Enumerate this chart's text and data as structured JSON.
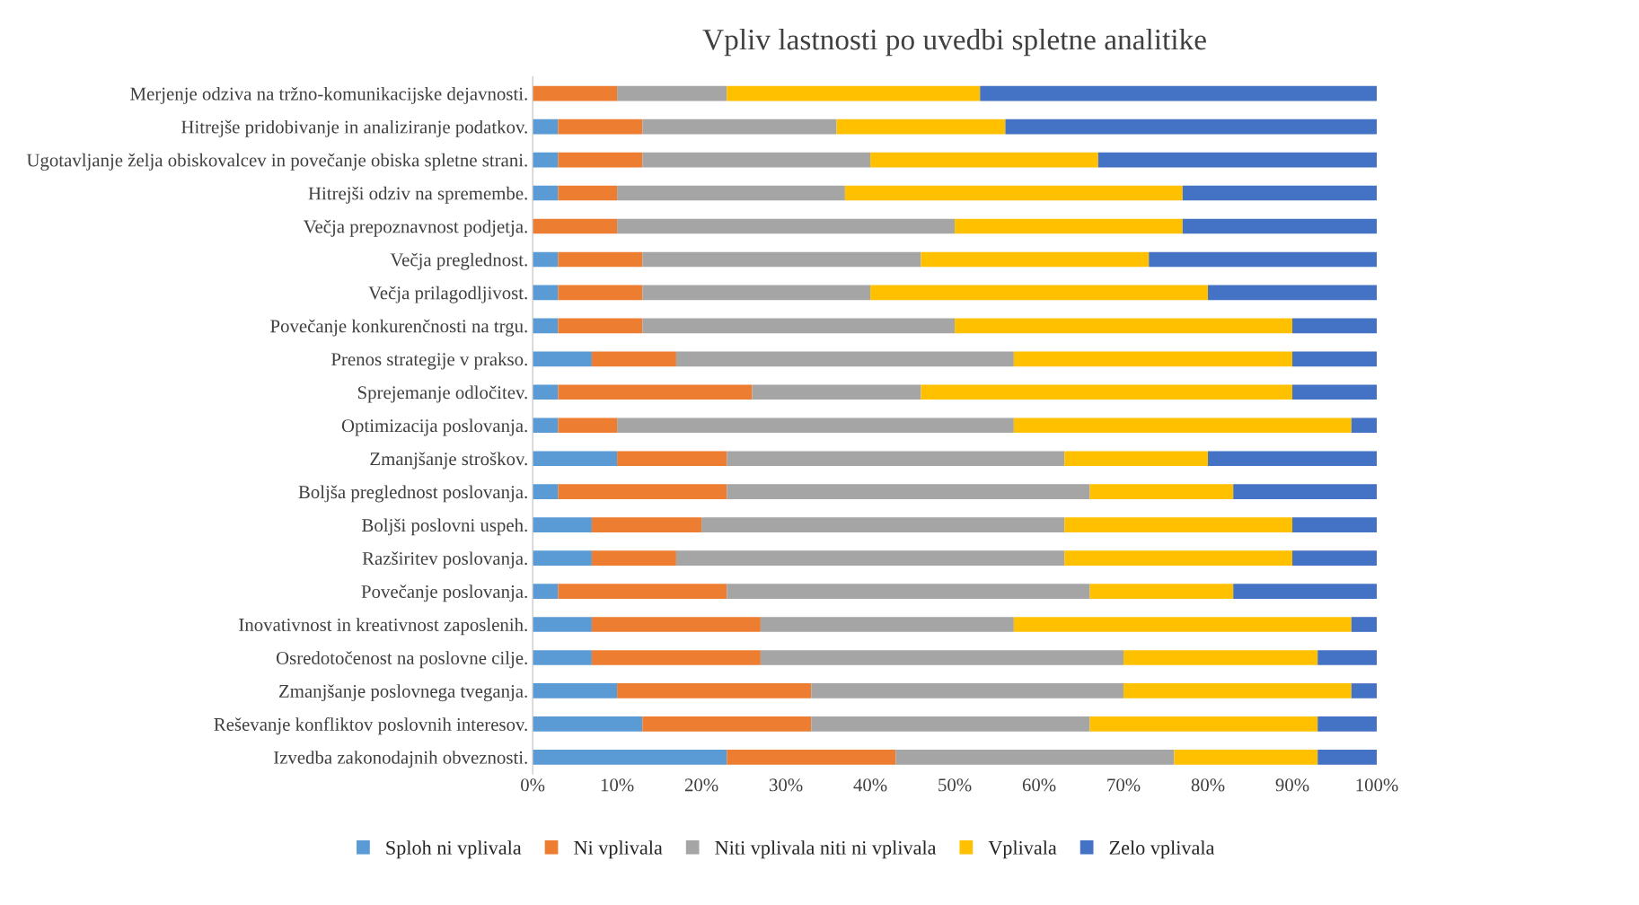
{
  "chart_data": {
    "type": "bar",
    "orientation": "horizontal",
    "stacked": true,
    "title": "Vpliv lastnosti po uvedbi spletne analitike",
    "categories": [
      "Merjenje odziva na tržno-komunikacijske dejavnosti.",
      "Hitrejše pridobivanje in analiziranje podatkov.",
      "Ugotavljanje želja obiskovalcev in povečanje obiska spletne strani.",
      "Hitrejši odziv na spremembe.",
      "Večja prepoznavnost podjetja.",
      "Večja preglednost.",
      "Večja prilagodljivost.",
      "Povečanje konkurenčnosti na trgu.",
      "Prenos strategije v prakso.",
      "Sprejemanje odločitev.",
      "Optimizacija poslovanja.",
      "Zmanjšanje stroškov.",
      "Boljša preglednost poslovanja.",
      "Boljši poslovni uspeh.",
      "Razširitev poslovanja.",
      "Povečanje poslovanja.",
      "Inovativnost in kreativnost zaposlenih.",
      "Osredotočenost na poslovne cilje.",
      "Zmanjšanje poslovnega tveganja.",
      "Reševanje konfliktov poslovnih interesov.",
      "Izvedba zakonodajnih obveznosti."
    ],
    "series": [
      {
        "name": "Sploh ni vplivala",
        "color": "#5b9bd5",
        "values": [
          0,
          3,
          3,
          3,
          0,
          3,
          3,
          3,
          7,
          3,
          3,
          10,
          3,
          7,
          7,
          3,
          7,
          7,
          10,
          13,
          23
        ]
      },
      {
        "name": "Ni vplivala",
        "color": "#ed7d31",
        "values": [
          10,
          10,
          10,
          7,
          10,
          10,
          10,
          10,
          10,
          23,
          7,
          13,
          20,
          13,
          10,
          20,
          20,
          20,
          23,
          20,
          20
        ]
      },
      {
        "name": "Niti vplivala niti ni vplivala",
        "color": "#a5a5a5",
        "values": [
          13,
          23,
          27,
          27,
          40,
          33,
          27,
          37,
          40,
          20,
          47,
          40,
          43,
          43,
          46,
          43,
          30,
          43,
          37,
          33,
          33
        ]
      },
      {
        "name": "Vplivala",
        "color": "#ffc000",
        "values": [
          30,
          20,
          27,
          40,
          27,
          27,
          40,
          40,
          33,
          44,
          40,
          17,
          17,
          27,
          27,
          17,
          40,
          23,
          27,
          27,
          17
        ]
      },
      {
        "name": "Zelo vplivala",
        "color": "#4472c4",
        "values": [
          47,
          44,
          33,
          23,
          23,
          27,
          20,
          10,
          10,
          10,
          3,
          20,
          17,
          10,
          10,
          17,
          3,
          7,
          3,
          7,
          7
        ]
      }
    ],
    "xlim": [
      0,
      100
    ],
    "xticks": [
      {
        "value": 0,
        "label": "0%"
      },
      {
        "value": 10,
        "label": "10%"
      },
      {
        "value": 20,
        "label": "20%"
      },
      {
        "value": 30,
        "label": "30%"
      },
      {
        "value": 40,
        "label": "40%"
      },
      {
        "value": 50,
        "label": "50%"
      },
      {
        "value": 60,
        "label": "60%"
      },
      {
        "value": 70,
        "label": "70%"
      },
      {
        "value": 80,
        "label": "80%"
      },
      {
        "value": 90,
        "label": "90%"
      },
      {
        "value": 100,
        "label": "100%"
      }
    ],
    "grid": false,
    "legend": "bottom"
  }
}
